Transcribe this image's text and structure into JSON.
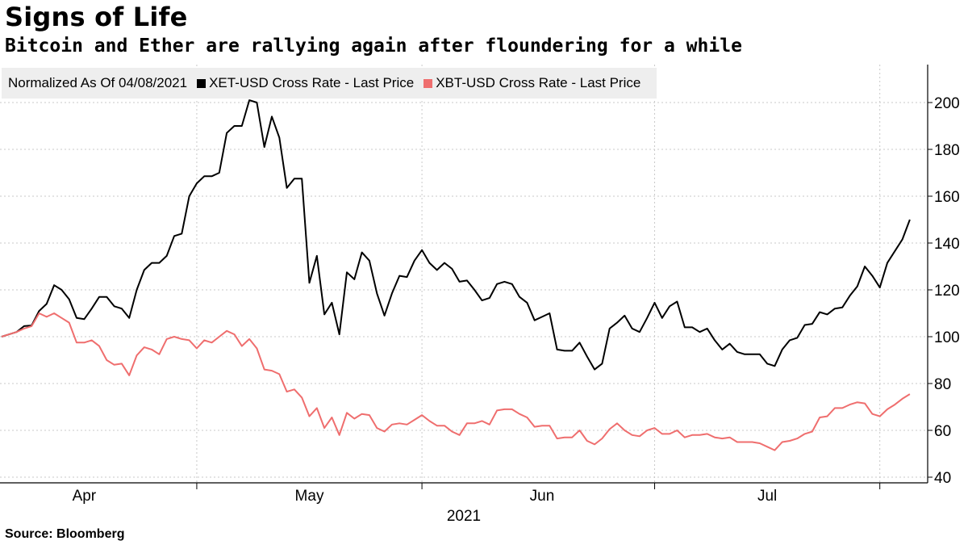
{
  "title": "Signs of Life",
  "subtitle": "Bitcoin and Ether are rallying again after floundering for a while",
  "source": "Source: Bloomberg",
  "legend": {
    "label": "Normalized As Of 04/08/2021",
    "items": [
      {
        "name": "XET-USD Cross Rate - Last Price",
        "color": "#000000"
      },
      {
        "name": "XBT-USD Cross Rate - Last Price",
        "color": "#ef6e6e"
      }
    ]
  },
  "chart_data": {
    "type": "line",
    "title": "Signs of Life",
    "subtitle": "Bitcoin and Ether are rallying again after floundering for a while",
    "ylim": [
      40,
      210
    ],
    "yticks": [
      40,
      60,
      80,
      100,
      120,
      140,
      160,
      180,
      200
    ],
    "x_range_days": [
      0,
      114
    ],
    "month_ticks": [
      {
        "label": "Apr",
        "day": 11
      },
      {
        "label": "May",
        "day": 41
      },
      {
        "label": "Jun",
        "day": 72
      },
      {
        "label": "Jul",
        "day": 102
      }
    ],
    "month_separators_day": [
      26,
      56,
      87,
      117
    ],
    "year_label": "2021",
    "grid": true,
    "legend_position": "top-left",
    "series": [
      {
        "name": "XET-USD Cross Rate - Last Price",
        "color": "#000000",
        "points": [
          [
            0,
            100
          ],
          [
            1,
            101
          ],
          [
            2,
            102
          ],
          [
            3,
            104.5
          ],
          [
            4,
            104.8
          ],
          [
            5,
            111
          ],
          [
            6,
            114
          ],
          [
            7,
            122
          ],
          [
            8,
            120
          ],
          [
            9,
            116
          ],
          [
            10,
            108
          ],
          [
            11,
            107.5
          ],
          [
            12,
            112
          ],
          [
            13,
            117
          ],
          [
            14,
            117
          ],
          [
            15,
            113
          ],
          [
            16,
            112
          ],
          [
            17,
            108
          ],
          [
            18,
            120
          ],
          [
            19,
            128.5
          ],
          [
            20,
            131.5
          ],
          [
            21,
            131.5
          ],
          [
            22,
            134.5
          ],
          [
            23,
            143
          ],
          [
            24,
            144
          ],
          [
            25,
            160
          ],
          [
            26,
            165.5
          ],
          [
            27,
            168.5
          ],
          [
            28,
            168.5
          ],
          [
            29,
            170
          ],
          [
            30,
            187
          ],
          [
            31,
            190
          ],
          [
            32,
            190
          ],
          [
            33,
            201
          ],
          [
            34,
            200
          ],
          [
            35,
            181
          ],
          [
            36,
            194
          ],
          [
            37,
            185
          ],
          [
            38,
            163.5
          ],
          [
            39,
            167.5
          ],
          [
            40,
            167.5
          ],
          [
            41,
            123
          ],
          [
            42,
            134.5
          ],
          [
            43,
            109.5
          ],
          [
            44,
            114.5
          ],
          [
            45,
            101
          ],
          [
            46,
            127.5
          ],
          [
            47,
            124.5
          ],
          [
            48,
            136
          ],
          [
            49,
            132.5
          ],
          [
            50,
            118.5
          ],
          [
            51,
            109
          ],
          [
            52,
            118.5
          ],
          [
            53,
            126
          ],
          [
            54,
            125.5
          ],
          [
            55,
            132.5
          ],
          [
            56,
            137
          ],
          [
            57,
            131.5
          ],
          [
            58,
            128.5
          ],
          [
            59,
            131.5
          ],
          [
            60,
            129
          ],
          [
            61,
            123.5
          ],
          [
            62,
            124
          ],
          [
            63,
            120
          ],
          [
            64,
            115.5
          ],
          [
            65,
            116.5
          ],
          [
            66,
            122.5
          ],
          [
            67,
            123.5
          ],
          [
            68,
            122.5
          ],
          [
            69,
            117
          ],
          [
            70,
            114.5
          ],
          [
            71,
            107
          ],
          [
            72,
            108.5
          ],
          [
            73,
            110
          ],
          [
            74,
            94.5
          ],
          [
            75,
            94
          ],
          [
            76,
            94
          ],
          [
            77,
            97.5
          ],
          [
            78,
            91.5
          ],
          [
            79,
            86
          ],
          [
            80,
            88.5
          ],
          [
            81,
            103.5
          ],
          [
            82,
            106
          ],
          [
            83,
            109
          ],
          [
            84,
            103.5
          ],
          [
            85,
            102
          ],
          [
            86,
            108
          ],
          [
            87,
            114.5
          ],
          [
            88,
            108
          ],
          [
            89,
            113
          ],
          [
            90,
            115
          ],
          [
            91,
            104
          ],
          [
            92,
            104
          ],
          [
            93,
            102
          ],
          [
            94,
            103.5
          ],
          [
            95,
            98.5
          ],
          [
            96,
            94.5
          ],
          [
            97,
            97
          ],
          [
            98,
            93.5
          ],
          [
            99,
            92.5
          ],
          [
            100,
            92.5
          ],
          [
            101,
            92.5
          ],
          [
            102,
            88.5
          ],
          [
            103,
            87.5
          ],
          [
            104,
            94.5
          ],
          [
            105,
            98.5
          ],
          [
            106,
            99.5
          ],
          [
            107,
            105
          ],
          [
            108,
            105.5
          ],
          [
            109,
            110.5
          ],
          [
            110,
            109.5
          ],
          [
            111,
            112
          ],
          [
            112,
            112.5
          ],
          [
            113,
            117.5
          ],
          [
            114,
            121.5
          ],
          [
            115,
            130
          ],
          [
            116,
            126
          ],
          [
            117,
            121
          ],
          [
            118,
            131.5
          ],
          [
            119,
            136.5
          ],
          [
            120,
            141.5
          ],
          [
            121,
            150
          ]
        ]
      },
      {
        "name": "XBT-USD Cross Rate - Last Price",
        "color": "#ef6e6e",
        "points": [
          [
            0,
            100
          ],
          [
            1,
            101
          ],
          [
            2,
            102
          ],
          [
            3,
            103.5
          ],
          [
            4,
            104.5
          ],
          [
            5,
            110
          ],
          [
            6,
            108.5
          ],
          [
            7,
            110
          ],
          [
            8,
            108
          ],
          [
            9,
            106
          ],
          [
            10,
            97.5
          ],
          [
            11,
            97.5
          ],
          [
            12,
            98.5
          ],
          [
            13,
            96
          ],
          [
            14,
            90
          ],
          [
            15,
            88
          ],
          [
            16,
            88.5
          ],
          [
            17,
            83.5
          ],
          [
            18,
            92
          ],
          [
            19,
            95.5
          ],
          [
            20,
            94.5
          ],
          [
            21,
            92.5
          ],
          [
            22,
            99
          ],
          [
            23,
            100
          ],
          [
            24,
            99
          ],
          [
            25,
            98.5
          ],
          [
            26,
            95
          ],
          [
            27,
            98.5
          ],
          [
            28,
            97.5
          ],
          [
            29,
            100
          ],
          [
            30,
            102.5
          ],
          [
            31,
            101
          ],
          [
            32,
            96
          ],
          [
            33,
            99
          ],
          [
            34,
            95
          ],
          [
            35,
            86
          ],
          [
            36,
            85.5
          ],
          [
            37,
            84
          ],
          [
            38,
            76.5
          ],
          [
            39,
            77.5
          ],
          [
            40,
            74
          ],
          [
            41,
            66
          ],
          [
            42,
            69.5
          ],
          [
            43,
            61
          ],
          [
            44,
            65.5
          ],
          [
            45,
            58
          ],
          [
            46,
            67.5
          ],
          [
            47,
            65
          ],
          [
            48,
            67
          ],
          [
            49,
            66.5
          ],
          [
            50,
            61
          ],
          [
            51,
            59.5
          ],
          [
            52,
            62.5
          ],
          [
            53,
            63
          ],
          [
            54,
            62.5
          ],
          [
            55,
            64.5
          ],
          [
            56,
            66.5
          ],
          [
            57,
            64
          ],
          [
            58,
            62
          ],
          [
            59,
            62
          ],
          [
            60,
            59.5
          ],
          [
            61,
            58
          ],
          [
            62,
            63
          ],
          [
            63,
            63
          ],
          [
            64,
            64
          ],
          [
            65,
            62.5
          ],
          [
            66,
            68.5
          ],
          [
            67,
            69
          ],
          [
            68,
            69
          ],
          [
            69,
            67
          ],
          [
            70,
            65.5
          ],
          [
            71,
            61.5
          ],
          [
            72,
            62
          ],
          [
            73,
            62
          ],
          [
            74,
            56.5
          ],
          [
            75,
            57
          ],
          [
            76,
            57
          ],
          [
            77,
            60
          ],
          [
            78,
            55.5
          ],
          [
            79,
            54
          ],
          [
            80,
            56.5
          ],
          [
            81,
            60.5
          ],
          [
            82,
            63
          ],
          [
            83,
            60
          ],
          [
            84,
            58
          ],
          [
            85,
            57.5
          ],
          [
            86,
            60
          ],
          [
            87,
            61
          ],
          [
            88,
            58.5
          ],
          [
            89,
            58.5
          ],
          [
            90,
            60
          ],
          [
            91,
            57
          ],
          [
            92,
            58
          ],
          [
            93,
            58
          ],
          [
            94,
            58.5
          ],
          [
            95,
            57
          ],
          [
            96,
            56.5
          ],
          [
            97,
            57
          ],
          [
            98,
            55
          ],
          [
            99,
            55
          ],
          [
            100,
            55
          ],
          [
            101,
            54.5
          ],
          [
            102,
            53
          ],
          [
            103,
            51.5
          ],
          [
            104,
            55
          ],
          [
            105,
            55.5
          ],
          [
            106,
            56.5
          ],
          [
            107,
            58.5
          ],
          [
            108,
            59.5
          ],
          [
            109,
            65.5
          ],
          [
            110,
            66
          ],
          [
            111,
            69.5
          ],
          [
            112,
            69.5
          ],
          [
            113,
            71
          ],
          [
            114,
            72
          ],
          [
            115,
            71.5
          ],
          [
            116,
            67
          ],
          [
            117,
            66
          ],
          [
            118,
            69
          ],
          [
            119,
            71
          ],
          [
            120,
            73.5
          ],
          [
            121,
            75.5
          ]
        ]
      }
    ]
  }
}
